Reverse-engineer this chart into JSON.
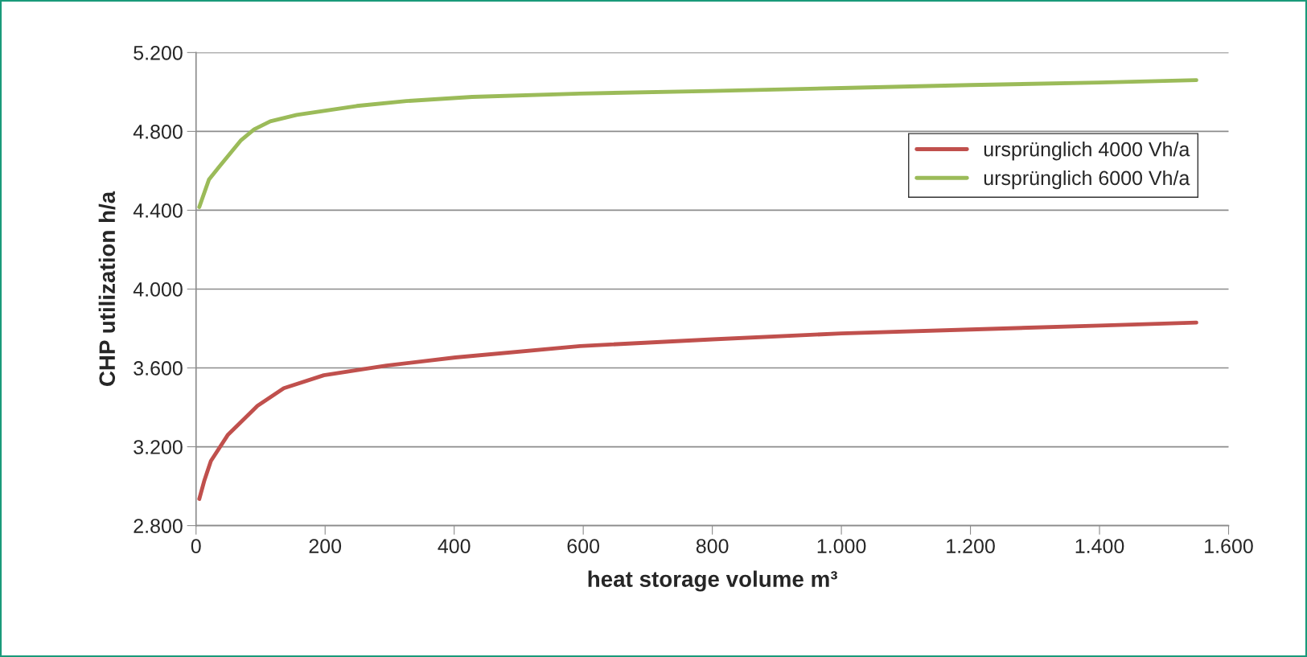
{
  "chart_data": {
    "type": "line",
    "xlabel": "heat storage volume m³",
    "ylabel": "CHP utilization h/a",
    "xlim": [
      0,
      1600
    ],
    "ylim": [
      2800,
      5200
    ],
    "xticks": [
      0,
      200,
      400,
      600,
      800,
      {
        "value": 1000,
        "label": "1.000"
      },
      {
        "value": 1200,
        "label": "1.200"
      },
      {
        "value": 1400,
        "label": "1.400"
      },
      {
        "value": 1600,
        "label": "1.600"
      }
    ],
    "yticks": [
      {
        "value": 2800,
        "label": "2.800"
      },
      {
        "value": 3200,
        "label": "3.200"
      },
      {
        "value": 3600,
        "label": "3.600"
      },
      {
        "value": 4000,
        "label": "4.000"
      },
      {
        "value": 4400,
        "label": "4.400"
      },
      {
        "value": 4800,
        "label": "4.800"
      },
      {
        "value": 5200,
        "label": "5.200"
      }
    ],
    "grid": "y",
    "legend": "top right",
    "marker": "none",
    "line_style": "solid",
    "series": [
      {
        "name": "ursprünglich 4000 Vh/a",
        "color": "#c0504d",
        "x": [
          5,
          13,
          23,
          49,
          95,
          136,
          198,
          295,
          402,
          595,
          800,
          1000,
          1200,
          1400,
          1550
        ],
        "values": [
          2935,
          3030,
          3128,
          3259,
          3407,
          3497,
          3563,
          3612,
          3653,
          3711,
          3745,
          3775,
          3795,
          3815,
          3830
        ]
      },
      {
        "name": "ursprünglich 6000 Vh/a",
        "color": "#9bbb59",
        "x": [
          5,
          20,
          36,
          69,
          90,
          115,
          156,
          249,
          326,
          428,
          595,
          800,
          1000,
          1200,
          1400,
          1550
        ],
        "values": [
          4416,
          4556,
          4621,
          4753,
          4810,
          4851,
          4884,
          4929,
          4954,
          4975,
          4992,
          5005,
          5020,
          5035,
          5048,
          5060
        ]
      }
    ]
  }
}
